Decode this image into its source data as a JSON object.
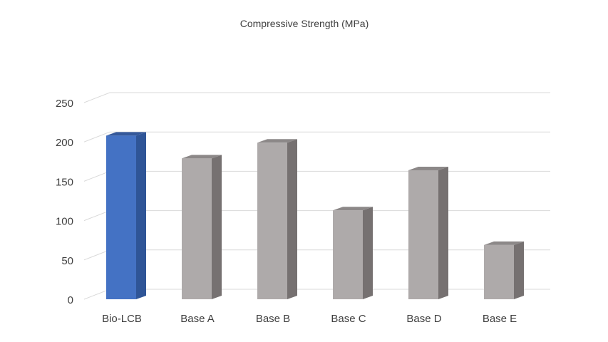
{
  "chart_data": {
    "type": "bar",
    "title": "Compressive Strength (MPa)",
    "xlabel": "",
    "ylabel": "",
    "categories": [
      "Bio-LCB",
      "Base A",
      "Base B",
      "Base C",
      "Base D",
      "Base E"
    ],
    "values": [
      208,
      179,
      199,
      113,
      164,
      69
    ],
    "ylim": [
      0,
      250
    ],
    "yticks": [
      0,
      50,
      100,
      150,
      200,
      250
    ],
    "ytick_labels": [
      "0",
      "50",
      "100",
      "150",
      "200",
      "250"
    ],
    "grid": true,
    "legend": "none",
    "style": "3d-column",
    "colors": {
      "highlight_front": "#4472C4",
      "highlight_side": "#2F5597",
      "highlight_top": "#34589A",
      "default_front": "#AEAAAA",
      "default_side": "#767171",
      "default_top": "#8C8888",
      "gridline": "#D9D9D9",
      "text": "#404040"
    },
    "highlight_index": 0
  }
}
